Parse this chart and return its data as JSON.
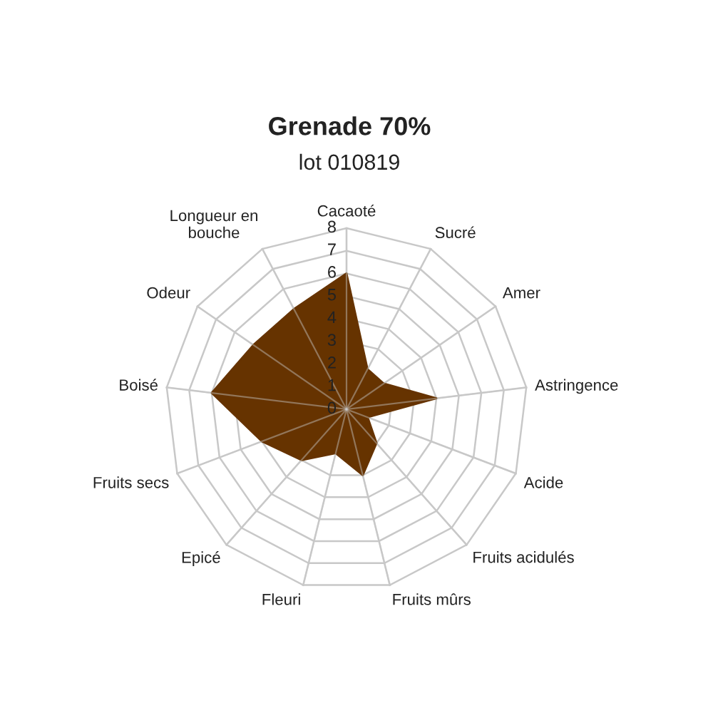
{
  "chart_data": {
    "type": "radar",
    "title": "Grenade 70%",
    "subtitle": "lot 010819",
    "categories": [
      "Cacaoté",
      "Sucré",
      "Amer",
      "Astringence",
      "Acide",
      "Fruits acidulés",
      "Fruits mûrs",
      "Fleuri",
      "Epicé",
      "Fruits secs",
      "Boisé",
      "Odeur",
      "Longueur en\nbouche"
    ],
    "series": [
      {
        "color": "#663300",
        "values": [
          6,
          2,
          2,
          4,
          1,
          2,
          3,
          2,
          3,
          4,
          6,
          5,
          5
        ]
      }
    ],
    "ylim": [
      0,
      8
    ],
    "yticks": [
      0,
      1,
      2,
      3,
      4,
      5,
      6,
      7,
      8
    ],
    "grid": true
  }
}
